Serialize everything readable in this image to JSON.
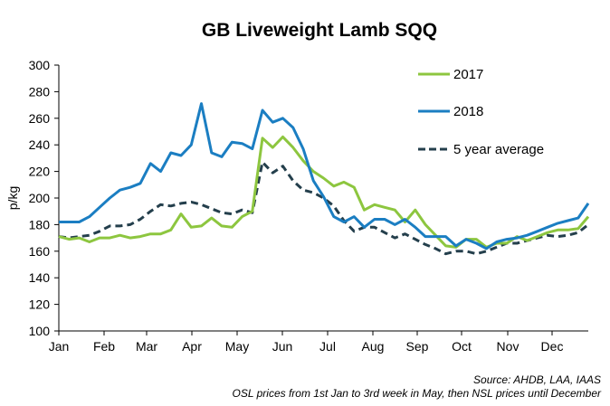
{
  "chart_data": {
    "type": "line",
    "title": "GB Liveweight Lamb SQQ",
    "xlabel": "",
    "ylabel": "p/kg",
    "ylim": [
      100,
      300
    ],
    "yticks": [
      100,
      120,
      140,
      160,
      180,
      200,
      220,
      240,
      260,
      280,
      300
    ],
    "x_tick_labels": [
      "Jan",
      "Feb",
      "Mar",
      "Apr",
      "May",
      "Jun",
      "Jul",
      "Aug",
      "Sep",
      "Oct",
      "Nov",
      "Dec"
    ],
    "x_unit": "week of year (1-53)",
    "grid": false,
    "legend_position": "top-right",
    "series": [
      {
        "name": "2017",
        "color": "#8DC63F",
        "style": "solid",
        "values": [
          171,
          169,
          170,
          167,
          170,
          170,
          172,
          170,
          171,
          173,
          173,
          176,
          188,
          178,
          179,
          185,
          179,
          178,
          186,
          190,
          245,
          238,
          246,
          238,
          228,
          220,
          215,
          209,
          212,
          208,
          191,
          195,
          193,
          191,
          182,
          191,
          180,
          172,
          164,
          163,
          169,
          169,
          163,
          166,
          166,
          171,
          168,
          171,
          174,
          176,
          176,
          177,
          186
        ]
      },
      {
        "name": "2018",
        "color": "#1B7EC2",
        "style": "solid",
        "values": [
          182,
          182,
          182,
          186,
          193,
          200,
          206,
          208,
          211,
          226,
          220,
          234,
          232,
          240,
          271,
          234,
          231,
          242,
          241,
          237,
          266,
          257,
          260,
          253,
          237,
          213,
          201,
          186,
          182,
          186,
          178,
          184,
          184,
          180,
          184,
          178,
          171,
          171,
          171,
          164,
          169,
          166,
          162,
          167,
          169,
          170,
          172,
          175,
          178,
          181,
          183,
          185,
          196
        ]
      },
      {
        "name": "5 year average",
        "color": "#243F4C",
        "style": "dashed",
        "values": [
          171,
          170,
          171,
          172,
          175,
          179,
          179,
          180,
          184,
          190,
          195,
          194,
          196,
          197,
          195,
          192,
          189,
          188,
          191,
          189,
          227,
          219,
          224,
          213,
          206,
          204,
          200,
          194,
          183,
          175,
          178,
          178,
          174,
          170,
          173,
          169,
          165,
          162,
          158,
          160,
          160,
          158,
          160,
          163,
          166,
          166,
          168,
          170,
          172,
          171,
          172,
          174,
          180
        ]
      }
    ],
    "annotations": [
      "Source: AHDB, LAA, IAAS",
      "OSL prices from 1st Jan to 3rd week in May, then NSL prices until December"
    ]
  }
}
